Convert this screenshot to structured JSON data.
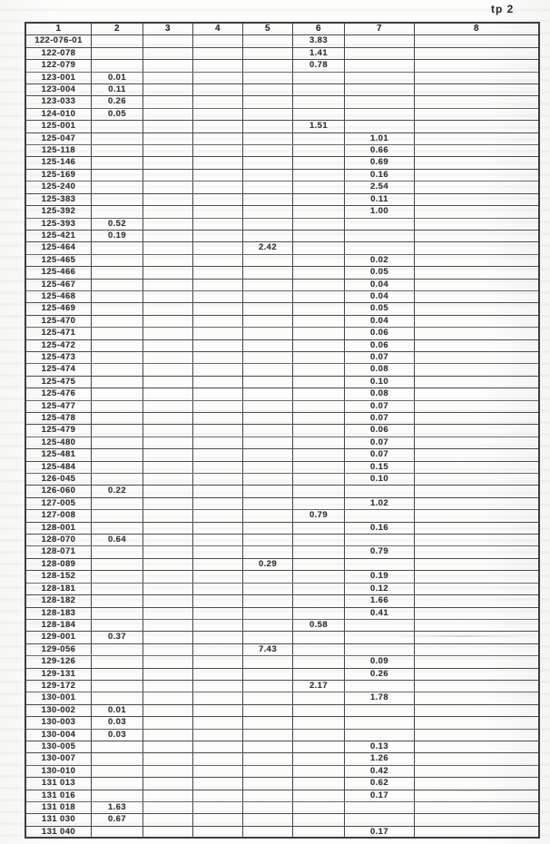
{
  "page_label": "tp 2",
  "table": {
    "columns": [
      "1",
      "2",
      "3",
      "4",
      "5",
      "6",
      "7",
      "8"
    ],
    "rows": [
      {
        "label": "122-076-01",
        "col": 6,
        "value": "3.83"
      },
      {
        "label": "122-078",
        "col": 6,
        "value": "1.41"
      },
      {
        "label": "122-079",
        "col": 6,
        "value": "0.78"
      },
      {
        "label": "123-001",
        "col": 2,
        "value": "0.01"
      },
      {
        "label": "123-004",
        "col": 2,
        "value": "0.11"
      },
      {
        "label": "123-033",
        "col": 2,
        "value": "0.26"
      },
      {
        "label": "124-010",
        "col": 2,
        "value": "0.05"
      },
      {
        "label": "125-001",
        "col": 6,
        "value": "1.51"
      },
      {
        "label": "125-047",
        "col": 7,
        "value": "1.01"
      },
      {
        "label": "125-118",
        "col": 7,
        "value": "0.66"
      },
      {
        "label": "125-146",
        "col": 7,
        "value": "0.69"
      },
      {
        "label": "125-169",
        "col": 7,
        "value": "0.16"
      },
      {
        "label": "125-240",
        "col": 7,
        "value": "2.54"
      },
      {
        "label": "125-383",
        "col": 7,
        "value": "0.11"
      },
      {
        "label": "125-392",
        "col": 7,
        "value": "1.00"
      },
      {
        "label": "125-393",
        "col": 2,
        "value": "0.52"
      },
      {
        "label": "125-421",
        "col": 2,
        "value": "0.19"
      },
      {
        "label": "125-464",
        "col": 5,
        "value": "2.42"
      },
      {
        "label": "125-465",
        "col": 7,
        "value": "0.02"
      },
      {
        "label": "125-466",
        "col": 7,
        "value": "0.05"
      },
      {
        "label": "125-467",
        "col": 7,
        "value": "0.04"
      },
      {
        "label": "125-468",
        "col": 7,
        "value": "0.04"
      },
      {
        "label": "125-469",
        "col": 7,
        "value": "0.05"
      },
      {
        "label": "125-470",
        "col": 7,
        "value": "0.04"
      },
      {
        "label": "125-471",
        "col": 7,
        "value": "0.06"
      },
      {
        "label": "125-472",
        "col": 7,
        "value": "0.06"
      },
      {
        "label": "125-473",
        "col": 7,
        "value": "0.07"
      },
      {
        "label": "125-474",
        "col": 7,
        "value": "0.08"
      },
      {
        "label": "125-475",
        "col": 7,
        "value": "0.10"
      },
      {
        "label": "125-476",
        "col": 7,
        "value": "0.08"
      },
      {
        "label": "125-477",
        "col": 7,
        "value": "0.07"
      },
      {
        "label": "125-478",
        "col": 7,
        "value": "0.07"
      },
      {
        "label": "125-479",
        "col": 7,
        "value": "0.06"
      },
      {
        "label": "125-480",
        "col": 7,
        "value": "0.07"
      },
      {
        "label": "125-481",
        "col": 7,
        "value": "0.07"
      },
      {
        "label": "125-484",
        "col": 7,
        "value": "0.15"
      },
      {
        "label": "126-045",
        "col": 7,
        "value": "0.10"
      },
      {
        "label": "126-060",
        "col": 2,
        "value": "0.22"
      },
      {
        "label": "127-005",
        "col": 7,
        "value": "1.02"
      },
      {
        "label": "127-008",
        "col": 6,
        "value": "0.79"
      },
      {
        "label": "128-001",
        "col": 7,
        "value": "0.16"
      },
      {
        "label": "128-070",
        "col": 2,
        "value": "0.64"
      },
      {
        "label": "128-071",
        "col": 7,
        "value": "0.79"
      },
      {
        "label": "128-089",
        "col": 5,
        "value": "0.29"
      },
      {
        "label": "128-152",
        "col": 7,
        "value": "0.19"
      },
      {
        "label": "128-181",
        "col": 7,
        "value": "0.12"
      },
      {
        "label": "128-182",
        "col": 7,
        "value": "1.66"
      },
      {
        "label": "128-183",
        "col": 7,
        "value": "0.41"
      },
      {
        "label": "128-184",
        "col": 6,
        "value": "0.58"
      },
      {
        "label": "129-001",
        "col": 2,
        "value": "0.37"
      },
      {
        "label": "129-056",
        "col": 5,
        "value": "7.43"
      },
      {
        "label": "129-126",
        "col": 7,
        "value": "0.09"
      },
      {
        "label": "129-131",
        "col": 7,
        "value": "0.26"
      },
      {
        "label": "129-172",
        "col": 6,
        "value": "2.17"
      },
      {
        "label": "130-001",
        "col": 7,
        "value": "1.78"
      },
      {
        "label": "130-002",
        "col": 2,
        "value": "0.01"
      },
      {
        "label": "130-003",
        "col": 2,
        "value": "0.03"
      },
      {
        "label": "130-004",
        "col": 2,
        "value": "0.03"
      },
      {
        "label": "130-005",
        "col": 7,
        "value": "0.13"
      },
      {
        "label": "130-007",
        "col": 7,
        "value": "1.26"
      },
      {
        "label": "130-010",
        "col": 7,
        "value": "0.42"
      },
      {
        "label": "131 013",
        "col": 7,
        "value": "0.62"
      },
      {
        "label": "131 016",
        "col": 7,
        "value": "0.17"
      },
      {
        "label": "131 018",
        "col": 2,
        "value": "1.63"
      },
      {
        "label": "131 030",
        "col": 2,
        "value": "0.67"
      },
      {
        "label": "131 040",
        "col": 7,
        "value": "0.17"
      }
    ]
  }
}
